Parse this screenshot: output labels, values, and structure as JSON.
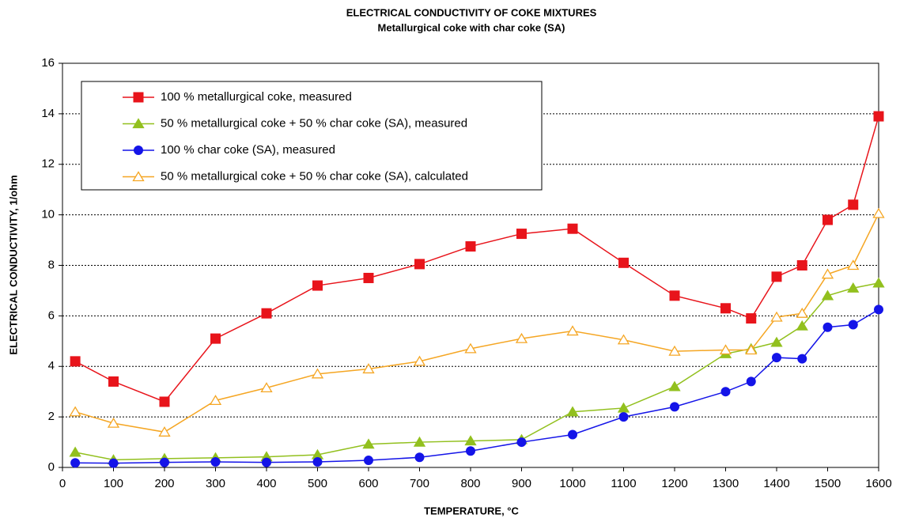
{
  "chart_data": {
    "type": "line",
    "title": "ELECTRICAL CONDUCTIVITY OF COKE MIXTURES",
    "subtitle": "Metallurgical coke with char coke (SA)",
    "x_label": "TEMPERATURE, °C",
    "y_label": "ELECTRICAL CONDUCTIVITY, 1/ohm",
    "x": [
      25,
      100,
      200,
      300,
      400,
      500,
      600,
      700,
      800,
      900,
      1000,
      1100,
      1200,
      1300,
      1350,
      1400,
      1450,
      1500,
      1550,
      1600
    ],
    "series": [
      {
        "name": "100 % metallurgical coke, measured",
        "color": "#e8141b",
        "marker": "square",
        "values": [
          4.2,
          3.4,
          2.6,
          5.1,
          6.1,
          7.2,
          7.5,
          8.05,
          8.75,
          9.25,
          9.45,
          8.1,
          6.8,
          6.3,
          5.9,
          7.55,
          8.0,
          9.8,
          10.4,
          13.9
        ]
      },
      {
        "name": "50 % metallurgical coke + 50 % char coke (SA), measured",
        "color": "#92c01e",
        "marker": "triangle",
        "values": [
          0.6,
          0.3,
          0.35,
          0.38,
          0.42,
          0.5,
          0.92,
          1.0,
          1.05,
          1.1,
          2.2,
          2.35,
          3.2,
          4.5,
          4.7,
          4.95,
          5.6,
          6.8,
          7.1,
          7.3
        ]
      },
      {
        "name": "100 % char coke (SA), measured",
        "color": "#1414e8",
        "marker": "circle",
        "values": [
          0.18,
          0.17,
          0.2,
          0.22,
          0.2,
          0.22,
          0.28,
          0.4,
          0.65,
          1.0,
          1.3,
          2.0,
          2.4,
          3.0,
          3.4,
          4.35,
          4.3,
          5.55,
          5.65,
          6.25
        ]
      },
      {
        "name": "50 % metallurgical coke + 50 % char coke (SA), calculated",
        "color": "#f5a623",
        "marker": "triangle-open",
        "values": [
          2.2,
          1.75,
          1.4,
          2.65,
          3.15,
          3.7,
          3.9,
          4.2,
          4.7,
          5.1,
          5.4,
          5.05,
          4.6,
          4.65,
          4.65,
          5.95,
          6.1,
          7.65,
          8.0,
          10.05
        ]
      }
    ],
    "xlim": [
      0,
      1600
    ],
    "xticks": [
      0,
      100,
      200,
      300,
      400,
      500,
      600,
      700,
      800,
      900,
      1000,
      1100,
      1200,
      1300,
      1400,
      1500,
      1600
    ],
    "ylim": [
      0,
      16
    ],
    "yticks": [
      0,
      2,
      4,
      6,
      8,
      10,
      12,
      14,
      16
    ],
    "grid": true,
    "legend": "upper-left"
  }
}
